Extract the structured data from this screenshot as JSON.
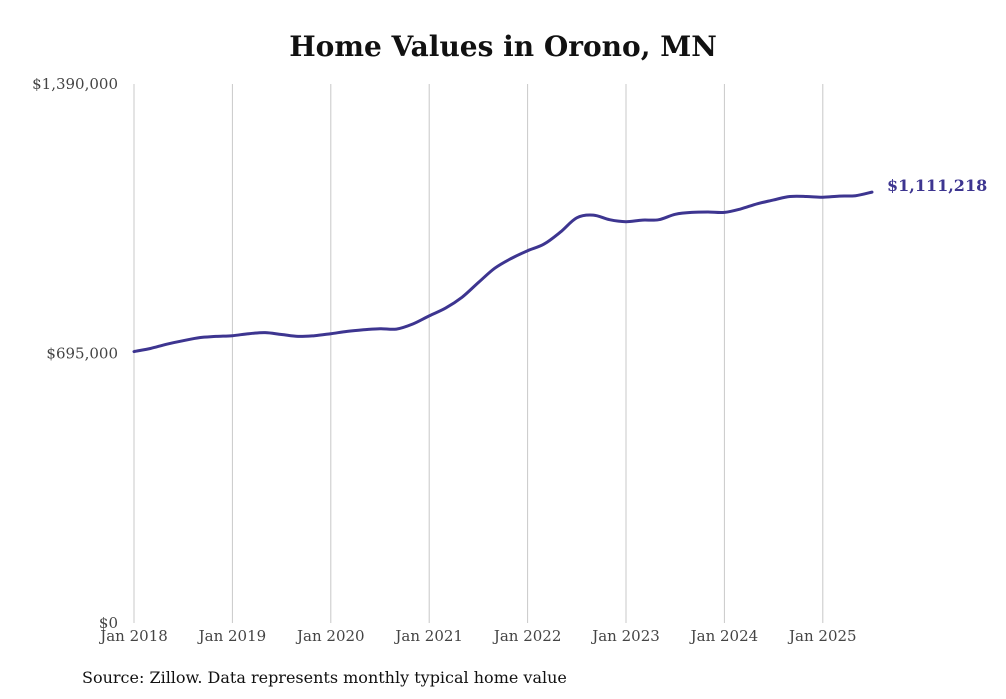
{
  "source_note": "Source: Zillow. Data represents monthly typical home value",
  "chart_data": {
    "type": "line",
    "title": "Home Values in Orono, MN",
    "xlabel": "",
    "ylabel": "",
    "ylim": [
      0,
      1390000
    ],
    "y_ticks": [
      {
        "value": 0,
        "label": "$0"
      },
      {
        "value": 695000,
        "label": "$695,000"
      },
      {
        "value": 1390000,
        "label": "$1,390,000"
      }
    ],
    "x_ticks": [
      {
        "date": "2018-01",
        "label": "Jan 2018"
      },
      {
        "date": "2019-01",
        "label": "Jan 2019"
      },
      {
        "date": "2020-01",
        "label": "Jan 2020"
      },
      {
        "date": "2021-01",
        "label": "Jan 2021"
      },
      {
        "date": "2022-01",
        "label": "Jan 2022"
      },
      {
        "date": "2023-01",
        "label": "Jan 2023"
      },
      {
        "date": "2024-01",
        "label": "Jan 2024"
      },
      {
        "date": "2025-01",
        "label": "Jan 2025"
      }
    ],
    "grid": {
      "vertical": true,
      "horizontal": false
    },
    "legend": "none",
    "line_color": "#3d3590",
    "end_label": "$1,111,218",
    "x": [
      "2018-01",
      "2018-03",
      "2018-05",
      "2018-07",
      "2018-09",
      "2018-11",
      "2019-01",
      "2019-03",
      "2019-05",
      "2019-07",
      "2019-09",
      "2019-11",
      "2020-01",
      "2020-03",
      "2020-05",
      "2020-07",
      "2020-09",
      "2020-11",
      "2021-01",
      "2021-03",
      "2021-05",
      "2021-07",
      "2021-09",
      "2021-11",
      "2022-01",
      "2022-03",
      "2022-05",
      "2022-07",
      "2022-09",
      "2022-11",
      "2023-01",
      "2023-03",
      "2023-05",
      "2023-07",
      "2023-09",
      "2023-11",
      "2024-01",
      "2024-03",
      "2024-05",
      "2024-07",
      "2024-09",
      "2024-11",
      "2025-01",
      "2025-03",
      "2025-05",
      "2025-07"
    ],
    "values": [
      700000,
      708000,
      719000,
      728000,
      736000,
      739000,
      741000,
      746000,
      749000,
      744000,
      739000,
      741000,
      746000,
      752000,
      756000,
      759000,
      758000,
      771000,
      792000,
      812000,
      840000,
      878000,
      915000,
      940000,
      960000,
      977000,
      1008000,
      1045000,
      1052000,
      1040000,
      1035000,
      1039000,
      1040000,
      1054000,
      1059000,
      1060000,
      1059000,
      1068000,
      1081000,
      1091000,
      1100000,
      1100000,
      1098000,
      1101000,
      1102000,
      1111218
    ]
  }
}
